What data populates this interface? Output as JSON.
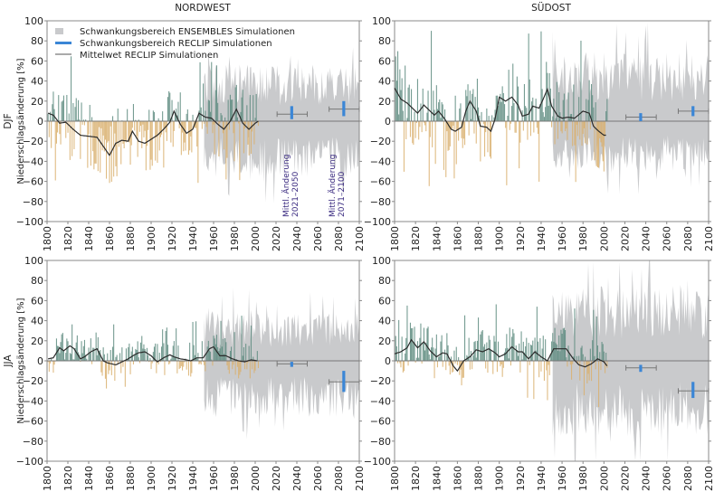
{
  "colors": {
    "positive_bar": "#5e8c80",
    "negative_bar": "#d9b06e",
    "ensemble_range": "#c9cacc",
    "reclip_range": "#3b86d6",
    "mean_line": "#2b2b2b",
    "axis": "#888888",
    "annotation": "#3a2a80"
  },
  "legend": {
    "items": [
      {
        "label": "Schwankungsbereich ENSEMBLES Simulationen",
        "symbol": "gray-square"
      },
      {
        "label": "Schwankungsbereich RECLIP Simulationen",
        "symbol": "blue-bar"
      },
      {
        "label": "Mittelwet RECLIP Simulationen",
        "symbol": "thin-line"
      }
    ],
    "placement": "top-left"
  },
  "annotations": [
    {
      "text_line1": "Mittl. Änderung",
      "text_line2": "2021–2050"
    },
    {
      "text_line1": "Mittl. Änderung",
      "text_line2": "2071–2100"
    }
  ],
  "chart_data": [
    {
      "type": "bar",
      "title": "NORDWEST",
      "season": "DJF",
      "xlabel": "",
      "ylabel": "Niederschlagsänderung [%]",
      "xlim": [
        1800,
        2100
      ],
      "ylim": [
        -100,
        100
      ],
      "xticks": [
        1800,
        1820,
        1840,
        1860,
        1880,
        1900,
        1920,
        1940,
        1960,
        1980,
        2000,
        2020,
        2040,
        2060,
        2080,
        2100
      ],
      "yticks": [
        100,
        80,
        60,
        40,
        20,
        0,
        -20,
        -40,
        -60,
        -80,
        -100
      ],
      "grid": false,
      "observed_anomalies": {
        "start_year": 1801,
        "end_year": 2003,
        "approx_range": [
          -65,
          88
        ]
      },
      "ensemble_range": {
        "start_year": 1951,
        "end_year": 2100,
        "approx_upper": 45,
        "approx_lower": -45
      },
      "smoothed_mean": {
        "x": [
          1801,
          1806,
          1812,
          1818,
          1825,
          1832,
          1840,
          1848,
          1856,
          1860,
          1866,
          1872,
          1878,
          1882,
          1888,
          1894,
          1900,
          1906,
          1912,
          1918,
          1922,
          1928,
          1934,
          1940,
          1946,
          1952,
          1958,
          1964,
          1970,
          1976,
          1982,
          1988,
          1994,
          2000,
          2003
        ],
        "y": [
          8,
          6,
          -2,
          -1,
          -8,
          -14,
          -15,
          -16,
          -28,
          -34,
          -22,
          -19,
          -20,
          -10,
          -20,
          -22,
          -18,
          -14,
          -8,
          -1,
          10,
          -3,
          -12,
          -8,
          8,
          4,
          3,
          -3,
          -8,
          0,
          12,
          -2,
          -8,
          -2,
          0
        ]
      },
      "reclip_periods": [
        {
          "period": "2021–2050",
          "center_year": 2035,
          "whisker_years": [
            2021,
            2050
          ],
          "mean": 7,
          "range": [
            2,
            15
          ]
        },
        {
          "period": "2071–2100",
          "center_year": 2085,
          "whisker_years": [
            2071,
            2100
          ],
          "mean": 12,
          "range": [
            5,
            20
          ]
        }
      ]
    },
    {
      "type": "bar",
      "title": "SÜDOST",
      "season": "DJF",
      "xlabel": "",
      "ylabel": "",
      "xlim": [
        1800,
        2100
      ],
      "ylim": [
        -100,
        100
      ],
      "xticks": [
        1800,
        1820,
        1840,
        1860,
        1880,
        1900,
        1920,
        1940,
        1960,
        1980,
        2000,
        2020,
        2040,
        2060,
        2080,
        2100
      ],
      "yticks": [
        100,
        80,
        60,
        40,
        20,
        0,
        -20,
        -40,
        -60,
        -80,
        -100
      ],
      "grid": false,
      "observed_anomalies": {
        "start_year": 1801,
        "end_year": 2003,
        "approx_range": [
          -68,
          100
        ]
      },
      "ensemble_range": {
        "start_year": 1951,
        "end_year": 2100,
        "approx_upper": 55,
        "approx_lower": -40
      },
      "smoothed_mean": {
        "x": [
          1800,
          1806,
          1812,
          1818,
          1822,
          1828,
          1832,
          1838,
          1842,
          1848,
          1854,
          1858,
          1864,
          1868,
          1872,
          1878,
          1882,
          1888,
          1892,
          1896,
          1900,
          1906,
          1912,
          1918,
          1922,
          1928,
          1932,
          1938,
          1942,
          1946,
          1950,
          1956,
          1960,
          1966,
          1972,
          1980,
          1986,
          1990,
          1995,
          2000,
          2002
        ],
        "y": [
          33,
          22,
          18,
          12,
          8,
          16,
          12,
          6,
          10,
          2,
          -8,
          -10,
          -6,
          10,
          20,
          10,
          -5,
          -6,
          -10,
          2,
          24,
          20,
          24,
          16,
          5,
          7,
          15,
          13,
          22,
          32,
          15,
          5,
          3,
          4,
          3,
          10,
          8,
          -5,
          -10,
          -14,
          -14
        ]
      },
      "reclip_periods": [
        {
          "period": "2021–2050",
          "center_year": 2035,
          "whisker_years": [
            2021,
            2050
          ],
          "mean": 4,
          "range": [
            0,
            8
          ]
        },
        {
          "period": "2071–2100",
          "center_year": 2085,
          "whisker_years": [
            2071,
            2100
          ],
          "mean": 10,
          "range": [
            5,
            15
          ]
        }
      ]
    },
    {
      "type": "bar",
      "title": "",
      "season": "JJA",
      "xlabel": "",
      "ylabel": "Niederschlagsänderung [%]",
      "xlim": [
        1800,
        2100
      ],
      "ylim": [
        -100,
        100
      ],
      "xticks": [
        1800,
        1820,
        1840,
        1860,
        1880,
        1900,
        1920,
        1940,
        1960,
        1980,
        2000,
        2020,
        2040,
        2060,
        2080,
        2100
      ],
      "yticks": [
        100,
        80,
        60,
        40,
        20,
        0,
        -20,
        -40,
        -60,
        -80,
        -100
      ],
      "grid": false,
      "observed_anomalies": {
        "start_year": 1801,
        "end_year": 2003,
        "approx_range": [
          -38,
          46
        ]
      },
      "ensemble_range": {
        "start_year": 1951,
        "end_year": 2100,
        "approx_upper": 40,
        "approx_lower": -45
      },
      "smoothed_mean": {
        "x": [
          1801,
          1806,
          1812,
          1816,
          1822,
          1826,
          1832,
          1836,
          1842,
          1848,
          1854,
          1858,
          1862,
          1866,
          1872,
          1878,
          1884,
          1888,
          1894,
          1900,
          1906,
          1912,
          1918,
          1922,
          1928,
          1934,
          1938,
          1944,
          1950,
          1956,
          1960,
          1966,
          1972,
          1978,
          1984,
          1990,
          1996,
          2002
        ],
        "y": [
          2,
          3,
          13,
          10,
          15,
          12,
          2,
          4,
          9,
          12,
          0,
          -2,
          -3,
          -4,
          -1,
          2,
          6,
          8,
          9,
          5,
          -1,
          3,
          6,
          4,
          2,
          1,
          0,
          3,
          3,
          12,
          14,
          5,
          5,
          2,
          0,
          -1,
          1,
          0
        ]
      },
      "reclip_periods": [
        {
          "period": "2021–2050",
          "center_year": 2035,
          "whisker_years": [
            2021,
            2050
          ],
          "mean": -3,
          "range": [
            -6,
            -1
          ]
        },
        {
          "period": "2071–2100",
          "center_year": 2085,
          "whisker_years": [
            2071,
            2100
          ],
          "mean": -21,
          "range": [
            -31,
            -10
          ]
        }
      ]
    },
    {
      "type": "bar",
      "title": "",
      "season": "",
      "xlabel": "",
      "ylabel": "",
      "xlim": [
        1800,
        2100
      ],
      "ylim": [
        -100,
        100
      ],
      "xticks": [
        1800,
        1820,
        1840,
        1860,
        1880,
        1900,
        1920,
        1940,
        1960,
        1980,
        2000,
        2020,
        2040,
        2060,
        2080,
        2100
      ],
      "yticks": [
        100,
        80,
        60,
        40,
        20,
        0,
        -20,
        -40,
        -60,
        -80,
        -100
      ],
      "grid": false,
      "observed_anomalies": {
        "start_year": 1801,
        "end_year": 2003,
        "approx_range": [
          -50,
          57
        ]
      },
      "ensemble_range": {
        "start_year": 1951,
        "end_year": 2100,
        "approx_upper": 60,
        "approx_lower": -60
      },
      "smoothed_mean": {
        "x": [
          1800,
          1806,
          1812,
          1816,
          1822,
          1828,
          1834,
          1840,
          1846,
          1850,
          1856,
          1860,
          1866,
          1872,
          1878,
          1884,
          1890,
          1896,
          1900,
          1906,
          1912,
          1918,
          1922,
          1928,
          1934,
          1940,
          1946,
          1952,
          1958,
          1964,
          1970,
          1976,
          1982,
          1988,
          1994,
          2000,
          2003
        ],
        "y": [
          7,
          9,
          13,
          21,
          13,
          19,
          10,
          4,
          8,
          7,
          -5,
          -10,
          0,
          4,
          11,
          9,
          12,
          8,
          4,
          7,
          14,
          9,
          9,
          2,
          9,
          4,
          0,
          12,
          12,
          12,
          3,
          -4,
          -6,
          -3,
          2,
          -1,
          -5
        ]
      },
      "reclip_periods": [
        {
          "period": "2021–2050",
          "center_year": 2035,
          "whisker_years": [
            2021,
            2050
          ],
          "mean": -7,
          "range": [
            -11,
            -4
          ]
        },
        {
          "period": "2071–2100",
          "center_year": 2085,
          "whisker_years": [
            2071,
            2100
          ],
          "mean": -30,
          "range": [
            -37,
            -21
          ]
        }
      ]
    }
  ]
}
